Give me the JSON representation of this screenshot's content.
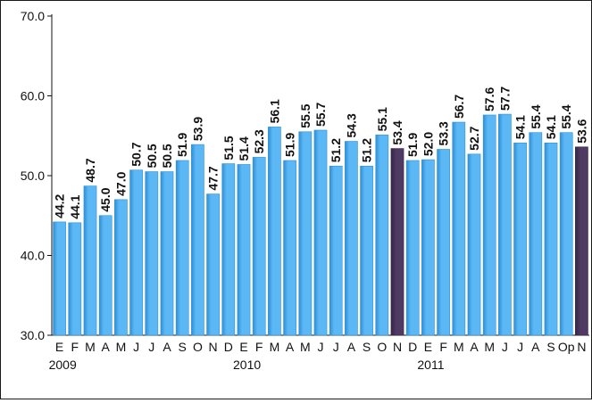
{
  "chart_data": {
    "type": "bar",
    "title": "",
    "xlabel": "",
    "ylabel": "",
    "ylim": [
      30,
      70
    ],
    "yticks": [
      "30.0",
      "40.0",
      "50.0",
      "60.0",
      "70.0"
    ],
    "grid": false,
    "legend": "none",
    "categories": [
      "E",
      "F",
      "M",
      "A",
      "M",
      "J",
      "J",
      "A",
      "S",
      "O",
      "N",
      "D",
      "E",
      "F",
      "M",
      "A",
      "M",
      "J",
      "J",
      "A",
      "S",
      "O",
      "N",
      "D",
      "E",
      "F",
      "M",
      "A",
      "M",
      "J",
      "J",
      "A",
      "S",
      "Op",
      "N"
    ],
    "year_labels": [
      {
        "label": "2009",
        "at_index": 0
      },
      {
        "label": "2010",
        "at_index": 12
      },
      {
        "label": "2011",
        "at_index": 24
      }
    ],
    "values": [
      44.2,
      44.1,
      48.7,
      45.0,
      47.0,
      50.7,
      50.5,
      50.5,
      51.9,
      53.9,
      47.7,
      51.5,
      51.4,
      52.3,
      56.1,
      51.9,
      55.5,
      55.7,
      51.2,
      54.3,
      51.2,
      55.1,
      53.4,
      51.9,
      52.0,
      53.3,
      56.7,
      52.7,
      57.6,
      57.7,
      54.1,
      55.4,
      54.1,
      55.4,
      53.6
    ],
    "value_labels": [
      "44.2",
      "44.1",
      "48.7",
      "45.0",
      "47.0",
      "50.7",
      "50.5",
      "50.5",
      "51.9",
      "53.9",
      "47.7",
      "51.5",
      "51.4",
      "52.3",
      "56.1",
      "51.9",
      "55.5",
      "55.7",
      "51.2",
      "54.3",
      "51.2",
      "55.1",
      "53.4",
      "51.9",
      "52.0",
      "53.3",
      "56.7",
      "52.7",
      "57.6",
      "57.7",
      "54.1",
      "55.4",
      "54.1",
      "55.4",
      "53.6"
    ],
    "highlight_indices": [
      22,
      34
    ],
    "colors": {
      "bar": "#5bb8f5",
      "bar_dark": "#2f8fd6",
      "highlight": "#4e3a63",
      "highlight_dark": "#352545",
      "axis": "#111111"
    }
  }
}
